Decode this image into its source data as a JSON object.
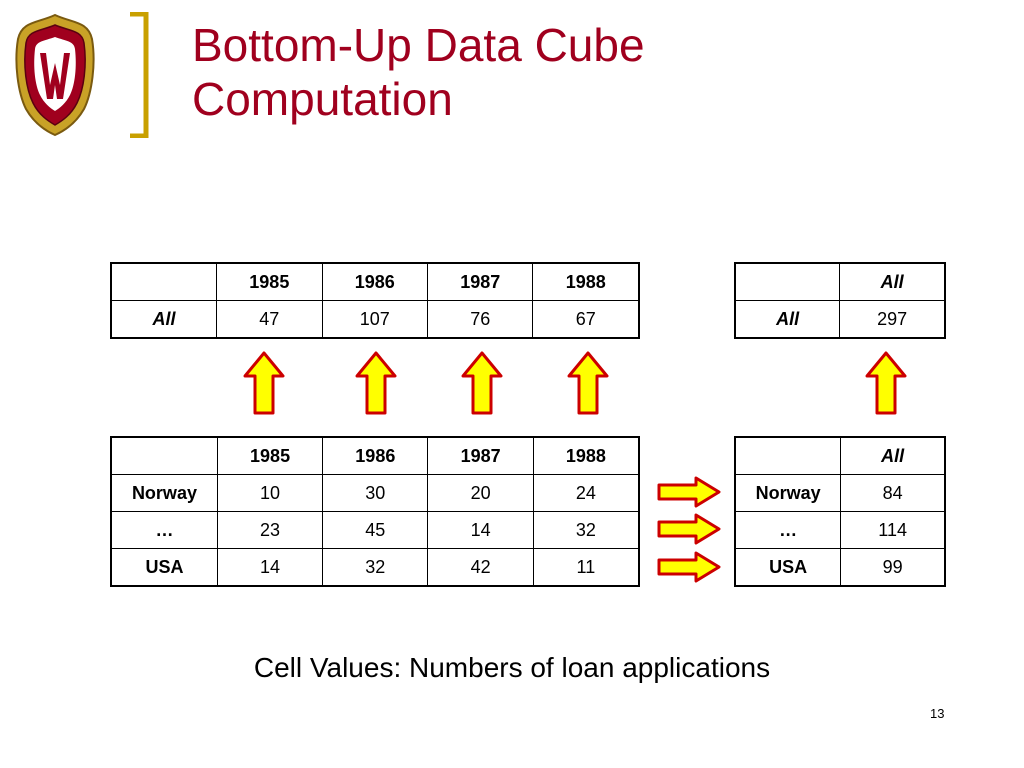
{
  "slide": {
    "title_line1": "Bottom-Up Data Cube",
    "title_line2": "Computation",
    "caption": "Cell Values: Numbers of loan applications",
    "page_number": "13"
  },
  "top_left_table": {
    "header": [
      "",
      "1985",
      "1986",
      "1987",
      "1988"
    ],
    "row_label": "All",
    "values": [
      "47",
      "107",
      "76",
      "67"
    ]
  },
  "top_right_table": {
    "header": [
      "",
      "All"
    ],
    "row_label": "All",
    "value": "297"
  },
  "bottom_left_table": {
    "header": [
      "",
      "1985",
      "1986",
      "1987",
      "1988"
    ],
    "rows": [
      {
        "label": "Norway",
        "values": [
          "10",
          "30",
          "20",
          "24"
        ]
      },
      {
        "label": "…",
        "values": [
          "23",
          "45",
          "14",
          "32"
        ]
      },
      {
        "label": "USA",
        "values": [
          "14",
          "32",
          "42",
          "11"
        ]
      }
    ]
  },
  "bottom_right_table": {
    "header": [
      "",
      "All"
    ],
    "rows": [
      {
        "label": "Norway",
        "value": "84"
      },
      {
        "label": "…",
        "value": "114"
      },
      {
        "label": "USA",
        "value": "99"
      }
    ]
  },
  "colors": {
    "title": "#a0001e",
    "arrow_fill": "#ffff00",
    "arrow_stroke": "#cc0000",
    "bracket": "#c8a000"
  }
}
